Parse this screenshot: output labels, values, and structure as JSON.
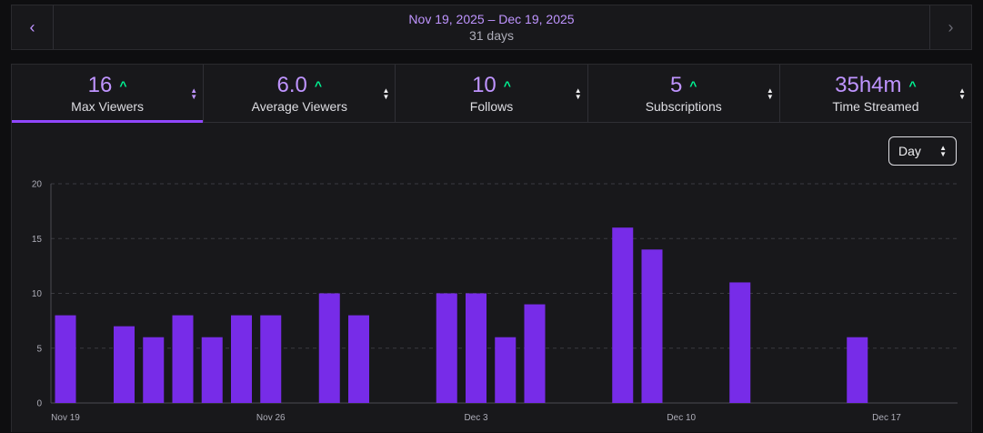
{
  "range": {
    "dates": "Nov 19, 2025 – Dec 19, 2025",
    "days": "31 days",
    "prev_icon": "chevron-left-icon",
    "next_icon": "chevron-right-icon"
  },
  "metrics": [
    {
      "value": "16",
      "label": "Max Viewers",
      "active": true
    },
    {
      "value": "6.0",
      "label": "Average Viewers",
      "active": false
    },
    {
      "value": "10",
      "label": "Follows",
      "active": false
    },
    {
      "value": "5",
      "label": "Subscriptions",
      "active": false
    },
    {
      "value": "35h4m",
      "label": "Time Streamed",
      "active": false
    }
  ],
  "granularity": {
    "selected": "Day"
  },
  "colors": {
    "accent": "#9147ff",
    "bar": "#772ce8",
    "value": "#bf94ff",
    "trend_up": "#00f593"
  },
  "chart_data": {
    "type": "bar",
    "xlabel": "",
    "ylabel": "",
    "ylim": [
      0,
      20
    ],
    "yticks": [
      0,
      5,
      10,
      15,
      20
    ],
    "grid": true,
    "categories": [
      "Nov 19",
      "Nov 20",
      "Nov 21",
      "Nov 22",
      "Nov 23",
      "Nov 24",
      "Nov 25",
      "Nov 26",
      "Nov 27",
      "Nov 28",
      "Nov 29",
      "Nov 30",
      "Dec 1",
      "Dec 2",
      "Dec 3",
      "Dec 4",
      "Dec 5",
      "Dec 6",
      "Dec 7",
      "Dec 8",
      "Dec 9",
      "Dec 10",
      "Dec 11",
      "Dec 12",
      "Dec 13",
      "Dec 14",
      "Dec 15",
      "Dec 16",
      "Dec 17",
      "Dec 18",
      "Dec 19"
    ],
    "values": [
      8,
      0,
      7,
      6,
      8,
      6,
      8,
      8,
      0,
      10,
      8,
      0,
      0,
      10,
      10,
      6,
      9,
      0,
      0,
      16,
      14,
      0,
      0,
      11,
      0,
      0,
      0,
      6,
      0,
      0,
      0
    ],
    "xtick_labels": [
      {
        "index": 0,
        "label": "Nov 19"
      },
      {
        "index": 7,
        "label": "Nov 26"
      },
      {
        "index": 14,
        "label": "Dec 3"
      },
      {
        "index": 21,
        "label": "Dec 10"
      },
      {
        "index": 28,
        "label": "Dec 17"
      }
    ]
  }
}
